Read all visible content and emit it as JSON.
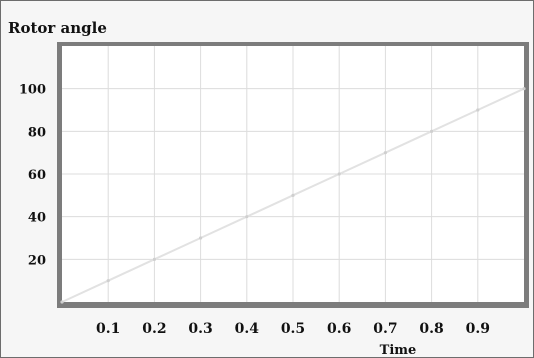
{
  "chart_data": {
    "type": "line",
    "title": "Rotor angle",
    "xlabel": "Time",
    "ylabel": "",
    "xlim": [
      0,
      1
    ],
    "ylim": [
      0,
      120
    ],
    "x_ticks": [
      "0.1",
      "0.2",
      "0.3",
      "0.4",
      "0.5",
      "0.6",
      "0.7",
      "0.8",
      "0.9"
    ],
    "y_ticks": [
      "20",
      "40",
      "60",
      "80",
      "100"
    ],
    "grid": true,
    "series": [
      {
        "x": [
          0,
          0.1,
          0.2,
          0.3,
          0.4,
          0.5,
          0.6,
          0.7,
          0.8,
          0.9,
          1.0
        ],
        "y": [
          0,
          10,
          20,
          30,
          40,
          50,
          60,
          70,
          80,
          90,
          100
        ]
      }
    ],
    "colors": {
      "line": "#e2e2e2",
      "plot_bg": "#ffffff",
      "frame": "#808080"
    }
  }
}
